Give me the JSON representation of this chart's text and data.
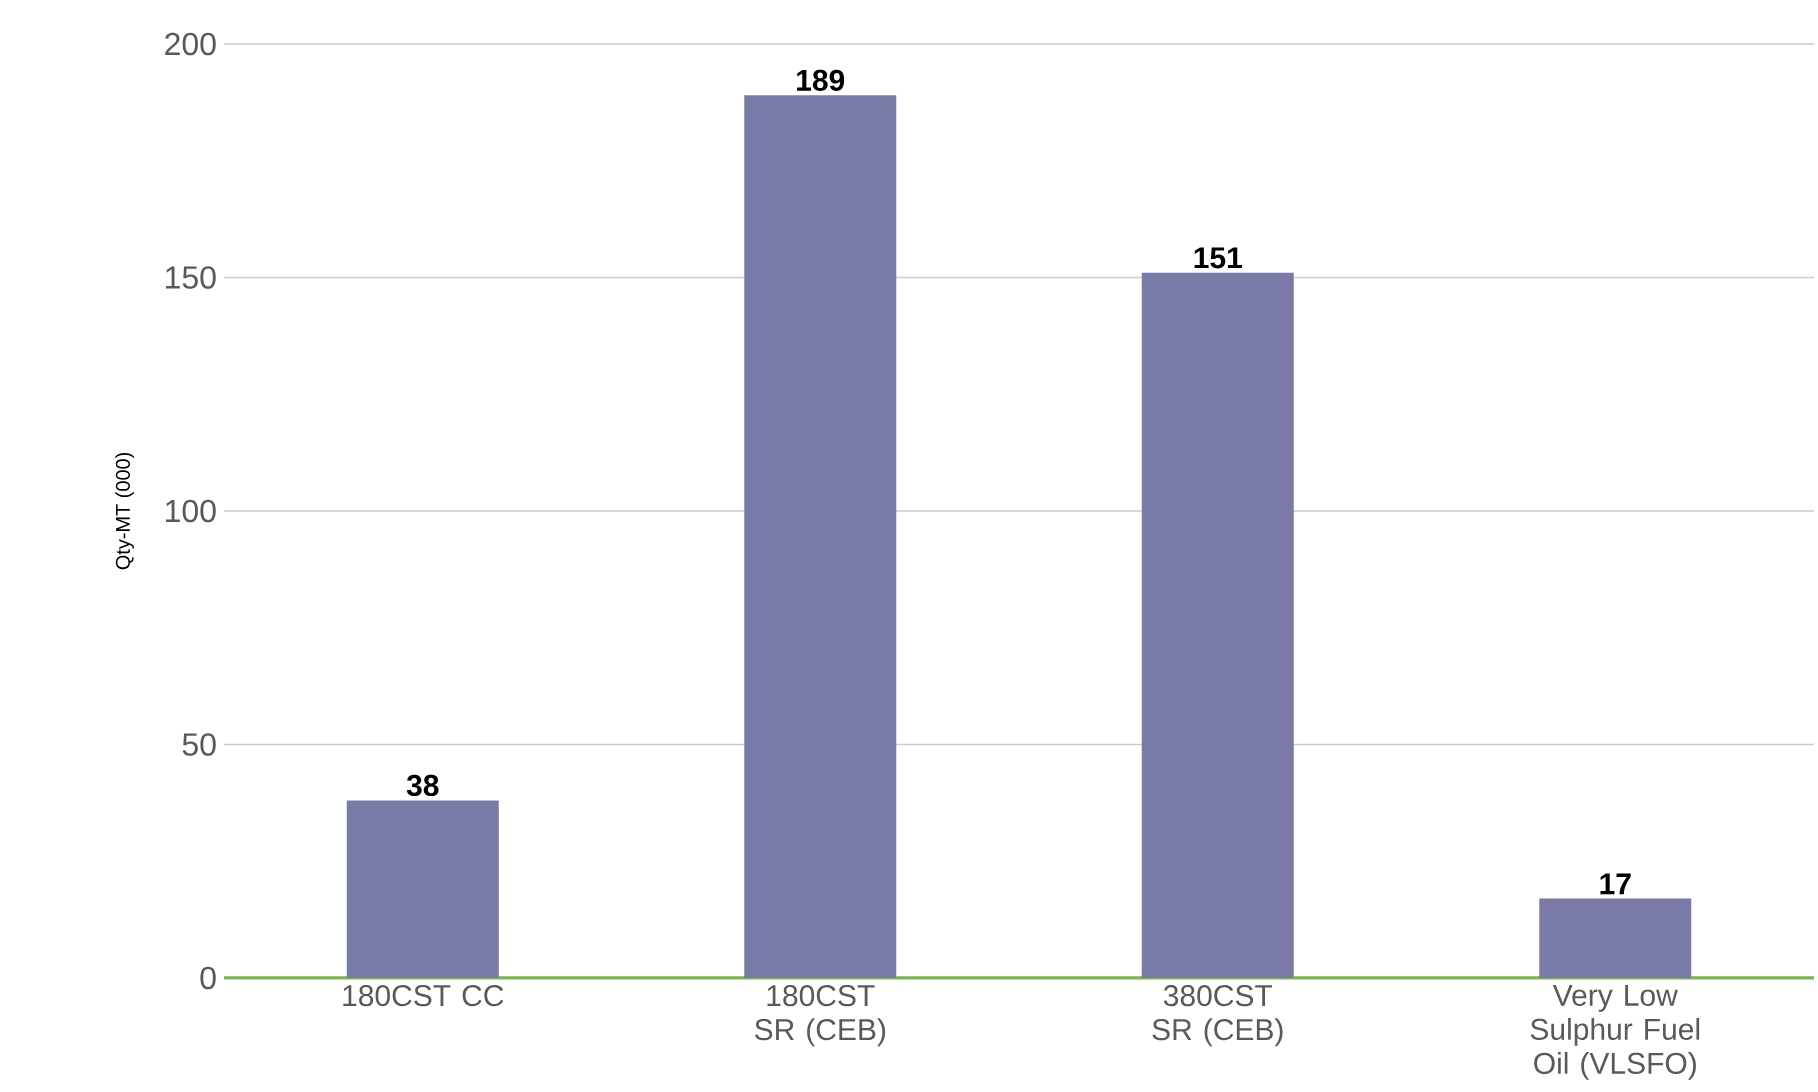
{
  "chart_data": {
    "type": "bar",
    "ylabel": "Qty-MT (000)",
    "categories": [
      "180CST CC",
      "180CST SR (CEB)",
      "380CST SR (CEB)",
      "Very Low Sulphur Fuel Oil (VLSFO)"
    ],
    "values": [
      38,
      189,
      151,
      17
    ],
    "color": "#7a7aa8",
    "ylim": [
      0,
      200
    ],
    "yticks": [
      0,
      50,
      100,
      150,
      200
    ],
    "grid": "y",
    "data_labels": true
  }
}
